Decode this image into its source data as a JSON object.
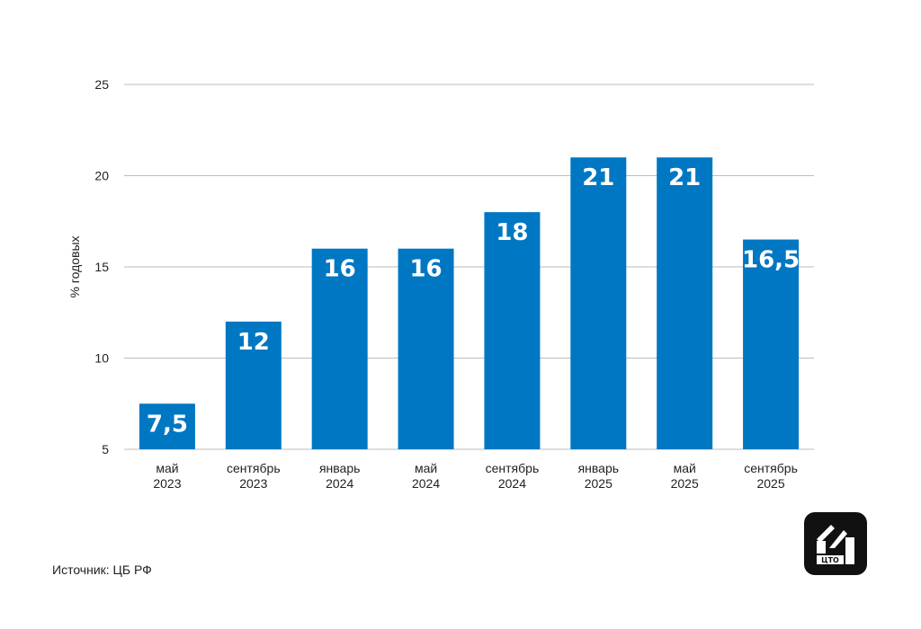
{
  "chart_data": {
    "type": "bar",
    "title": "",
    "xlabel": "",
    "ylabel": "% годовых",
    "ylim": [
      5,
      25
    ],
    "yticks": [
      5,
      10,
      15,
      20,
      25
    ],
    "grid": true,
    "categories": [
      [
        "май",
        "2023"
      ],
      [
        "сентябрь",
        "2023"
      ],
      [
        "январь",
        "2024"
      ],
      [
        "май",
        "2024"
      ],
      [
        "сентябрь",
        "2024"
      ],
      [
        "январь",
        "2025"
      ],
      [
        "май",
        "2025"
      ],
      [
        "сентябрь",
        "2025"
      ]
    ],
    "values": [
      7.5,
      12,
      16,
      16,
      18,
      21,
      21,
      16.5
    ],
    "data_labels": [
      "7,5",
      "12",
      "16",
      "16",
      "18",
      "21",
      "21",
      "16,5"
    ],
    "bar_color": "#0077c2",
    "grid_color": "#bdbdbd"
  },
  "footer": {
    "source": "Источник: ЦБ РФ"
  },
  "logo": {
    "text": "ЦТО",
    "icon": "brand-logo-icon"
  }
}
